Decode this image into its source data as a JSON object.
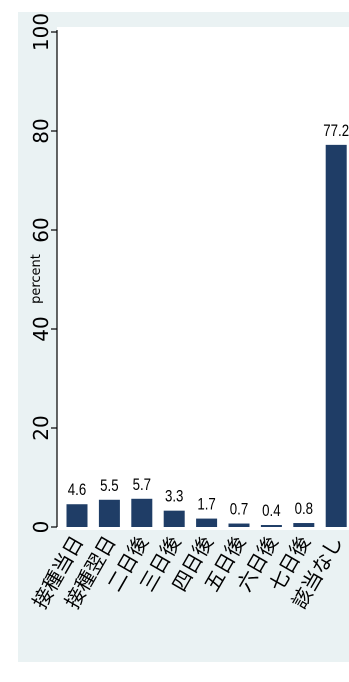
{
  "chart_data": {
    "type": "bar",
    "title": "",
    "xlabel": "",
    "ylabel": "percent",
    "ylim": [
      0,
      100
    ],
    "yticks": [
      0,
      20,
      40,
      60,
      80,
      100
    ],
    "ytick_labels": [
      "0",
      "20",
      "40",
      "60",
      "80",
      "100"
    ],
    "categories": [
      "接種当日",
      "接種翌日",
      "二日後",
      "三日後",
      "四日後",
      "五日後",
      "六日後",
      "七日後",
      "該当なし"
    ],
    "values": [
      4.6,
      5.5,
      5.7,
      3.3,
      1.7,
      0.7,
      0.4,
      0.8,
      77.2
    ],
    "value_labels": [
      "4.6",
      "5.5",
      "5.7",
      "3.3",
      "1.7",
      "0.7",
      "0.4",
      "0.8",
      "77.2"
    ],
    "grid": false,
    "legend": "none",
    "colors": {
      "bar": "#1f3d66",
      "panel_background": "#eaf2f3",
      "plot_background": "#ffffff",
      "text": "#000000"
    }
  }
}
